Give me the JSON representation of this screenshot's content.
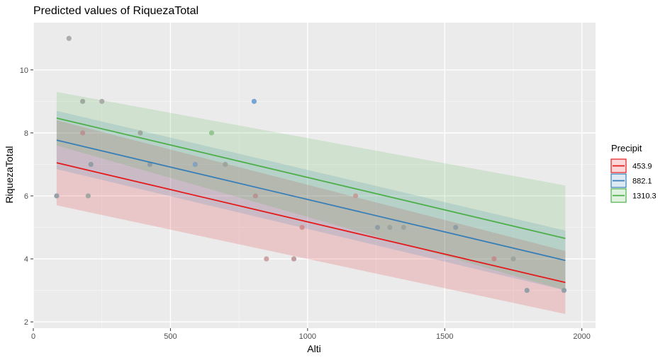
{
  "chart_data": {
    "type": "line",
    "title": "Predicted values of RiquezaTotal",
    "xlabel": "Alti",
    "ylabel": "RiquezaTotal",
    "xlim": [
      0,
      2050
    ],
    "ylim": [
      1.8,
      11.5
    ],
    "x_ticks": [
      0,
      500,
      1000,
      1500,
      2000
    ],
    "x_tick_labels": [
      "0",
      "500",
      "1000",
      "1500",
      "2000"
    ],
    "y_ticks": [
      2,
      4,
      6,
      8,
      10
    ],
    "y_tick_labels": [
      "2",
      "4",
      "6",
      "8",
      "10"
    ],
    "grid": true,
    "legend": {
      "title": "Precipit",
      "placement": "right"
    },
    "series": [
      {
        "name": "453.9",
        "color": "#E41A1C",
        "fill": "#F4B4B5",
        "x": [
          85,
          1940
        ],
        "y": [
          7.05,
          3.25
        ],
        "ci_low": [
          5.7,
          2.25
        ],
        "ci_high": [
          8.4,
          4.25
        ]
      },
      {
        "name": "882.1",
        "color": "#377EB8",
        "fill": "#B4CCE3",
        "x": [
          85,
          1940
        ],
        "y": [
          7.77,
          3.95
        ],
        "ci_low": [
          6.85,
          3.0
        ],
        "ci_high": [
          8.7,
          4.9
        ]
      },
      {
        "name": "1310.3",
        "color": "#4DAF4A",
        "fill": "#B9DDB7",
        "x": [
          85,
          1940
        ],
        "y": [
          8.47,
          4.65
        ],
        "ci_low": [
          7.6,
          3.0
        ],
        "ci_high": [
          9.3,
          6.33
        ]
      }
    ],
    "points": [
      {
        "x": 85,
        "y": 6,
        "color": "#8c9aa3"
      },
      {
        "x": 130,
        "y": 11,
        "color": "#a5a5a5"
      },
      {
        "x": 180,
        "y": 9,
        "color": "#9aa39a"
      },
      {
        "x": 180,
        "y": 8,
        "color": "#b89090"
      },
      {
        "x": 200,
        "y": 6,
        "color": "#9aa39a"
      },
      {
        "x": 210,
        "y": 7,
        "color": "#8c9aa3"
      },
      {
        "x": 250,
        "y": 9,
        "color": "#a5a5a5"
      },
      {
        "x": 390,
        "y": 8,
        "color": "#9aa39a"
      },
      {
        "x": 425,
        "y": 7,
        "color": "#8c9aa3"
      },
      {
        "x": 590,
        "y": 7,
        "color": "#7f9fc0"
      },
      {
        "x": 650,
        "y": 8,
        "color": "#8fc28c"
      },
      {
        "x": 700,
        "y": 7,
        "color": "#9aa39a"
      },
      {
        "x": 805,
        "y": 9,
        "color": "#6a9cd0"
      },
      {
        "x": 810,
        "y": 6,
        "color": "#b89090"
      },
      {
        "x": 850,
        "y": 4,
        "color": "#c99a9a"
      },
      {
        "x": 950,
        "y": 4,
        "color": "#c09595"
      },
      {
        "x": 980,
        "y": 5,
        "color": "#d08a8a"
      },
      {
        "x": 1175,
        "y": 6,
        "color": "#c49a94"
      },
      {
        "x": 1255,
        "y": 5,
        "color": "#8c9aa3"
      },
      {
        "x": 1300,
        "y": 5,
        "color": "#9aa39a"
      },
      {
        "x": 1350,
        "y": 5,
        "color": "#9aa39a"
      },
      {
        "x": 1540,
        "y": 5,
        "color": "#8c9aa3"
      },
      {
        "x": 1680,
        "y": 4,
        "color": "#c08a8a"
      },
      {
        "x": 1750,
        "y": 4,
        "color": "#9aa39a"
      },
      {
        "x": 1800,
        "y": 3,
        "color": "#8c9aa3"
      },
      {
        "x": 1935,
        "y": 3,
        "color": "#8c9aa3"
      }
    ]
  }
}
